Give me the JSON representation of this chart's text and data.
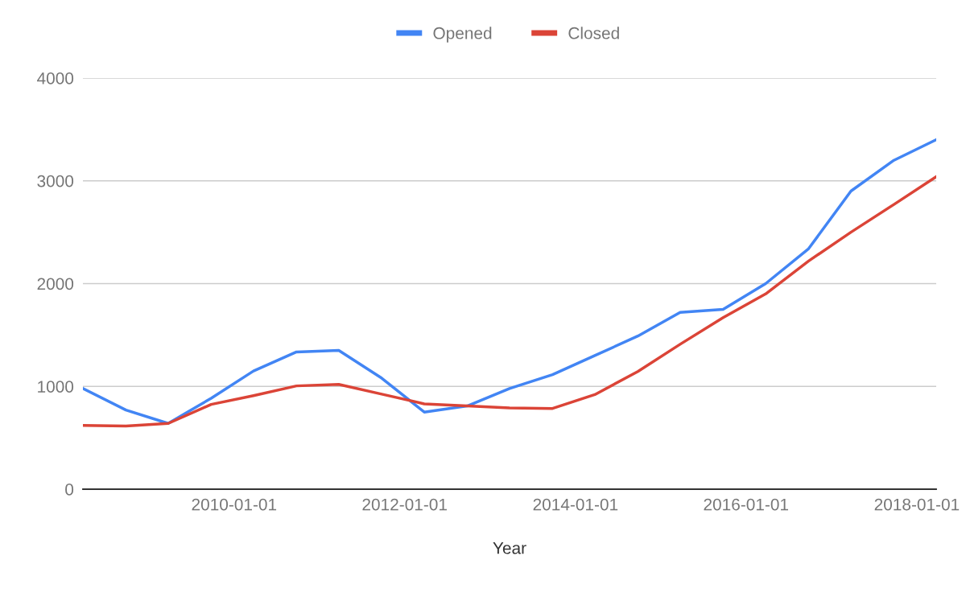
{
  "chart_data": {
    "type": "line",
    "xlabel": "Year",
    "x": [
      "2008-03-25",
      "2008-09-25",
      "2009-03-25",
      "2009-09-25",
      "2010-03-25",
      "2010-09-25",
      "2011-03-25",
      "2011-09-25",
      "2012-03-25",
      "2012-09-25",
      "2013-03-25",
      "2013-09-25",
      "2014-03-25",
      "2014-09-25",
      "2015-03-25",
      "2015-09-25",
      "2016-03-25",
      "2016-09-25",
      "2017-03-25",
      "2017-09-25",
      "2018-03-25"
    ],
    "series": [
      {
        "name": "Opened",
        "color": "#4285f4",
        "values": [
          980,
          770,
          640,
          885,
          1150,
          1335,
          1350,
          1080,
          750,
          810,
          980,
          1115,
          1300,
          1490,
          1720,
          1750,
          2000,
          2340,
          2900,
          3200,
          3400
        ]
      },
      {
        "name": "Closed",
        "color": "#db4437",
        "values": [
          620,
          615,
          640,
          825,
          910,
          1005,
          1020,
          925,
          830,
          810,
          790,
          785,
          920,
          1145,
          1410,
          1670,
          1900,
          2220,
          2500,
          2770,
          3040
        ]
      }
    ],
    "xlim": [
      "2008-03-25",
      "2018-03-25"
    ],
    "xticks": [
      {
        "value": "2010-01-01",
        "label": "2010-01-01"
      },
      {
        "value": "2012-01-01",
        "label": "2012-01-01"
      },
      {
        "value": "2014-01-01",
        "label": "2014-01-01"
      },
      {
        "value": "2016-01-01",
        "label": "2016-01-01"
      },
      {
        "value": "2018-01-01",
        "label": "2018-01-01"
      }
    ],
    "ylim": [
      0,
      4000
    ],
    "yticks": [
      0,
      1000,
      2000,
      3000,
      4000
    ],
    "grid": "y",
    "legend": "top",
    "marker": "none",
    "line_style": "solid"
  }
}
